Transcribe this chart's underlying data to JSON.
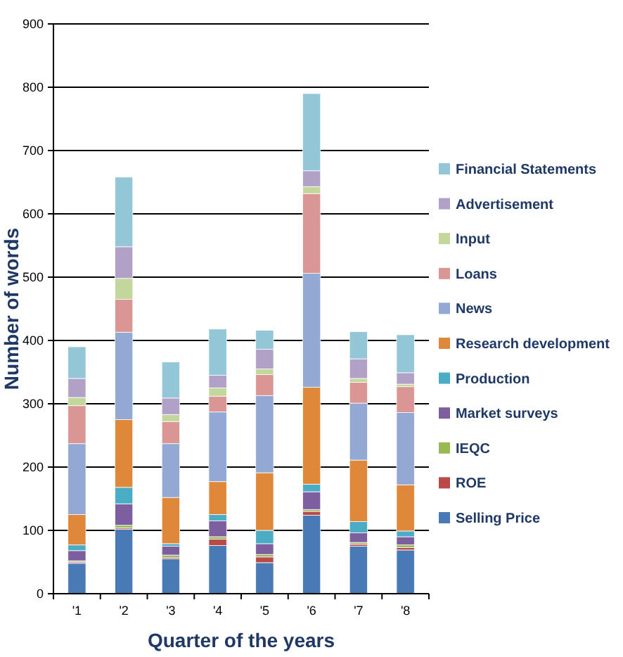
{
  "chart_data": {
    "type": "bar",
    "stacked": true,
    "xlabel": "Quarter of the years",
    "ylabel": "Number of words",
    "categories": [
      "'1",
      "'2",
      "'3",
      "'4",
      "'5",
      "'6",
      "'7",
      "'8"
    ],
    "ylim": [
      0,
      900
    ],
    "yticks": [
      0,
      100,
      200,
      300,
      400,
      500,
      600,
      700,
      800,
      900
    ],
    "grid": "y",
    "legend": "right",
    "series": [
      {
        "name": "Selling Price",
        "color": "#4a7ab5",
        "values": [
          48,
          102,
          55,
          76,
          49,
          124,
          75,
          69
        ]
      },
      {
        "name": "ROE",
        "color": "#b94a48",
        "values": [
          2,
          2,
          2,
          10,
          9,
          6,
          3,
          4
        ]
      },
      {
        "name": "IEQC",
        "color": "#98b954",
        "values": [
          2,
          4,
          4,
          4,
          4,
          3,
          3,
          4
        ]
      },
      {
        "name": "Market surveys",
        "color": "#7d5fa0",
        "values": [
          16,
          34,
          14,
          25,
          17,
          28,
          15,
          13
        ]
      },
      {
        "name": "Production",
        "color": "#4aacc5",
        "values": [
          9,
          26,
          4,
          10,
          21,
          12,
          18,
          9
        ]
      },
      {
        "name": "Research development",
        "color": "#e0883a",
        "values": [
          48,
          107,
          73,
          52,
          91,
          153,
          97,
          73
        ]
      },
      {
        "name": "News",
        "color": "#93a9d4",
        "values": [
          112,
          138,
          85,
          110,
          122,
          180,
          90,
          114
        ]
      },
      {
        "name": "Loans",
        "color": "#d99694",
        "values": [
          60,
          52,
          35,
          25,
          33,
          126,
          33,
          41
        ]
      },
      {
        "name": "Input",
        "color": "#c3d69b",
        "values": [
          13,
          33,
          11,
          13,
          9,
          11,
          6,
          4
        ]
      },
      {
        "name": "Advertisement",
        "color": "#b2a1c7",
        "values": [
          30,
          50,
          26,
          20,
          31,
          25,
          31,
          18
        ]
      },
      {
        "name": "Financial Statements",
        "color": "#93c6d6",
        "values": [
          50,
          110,
          57,
          73,
          30,
          122,
          43,
          60
        ]
      }
    ]
  }
}
